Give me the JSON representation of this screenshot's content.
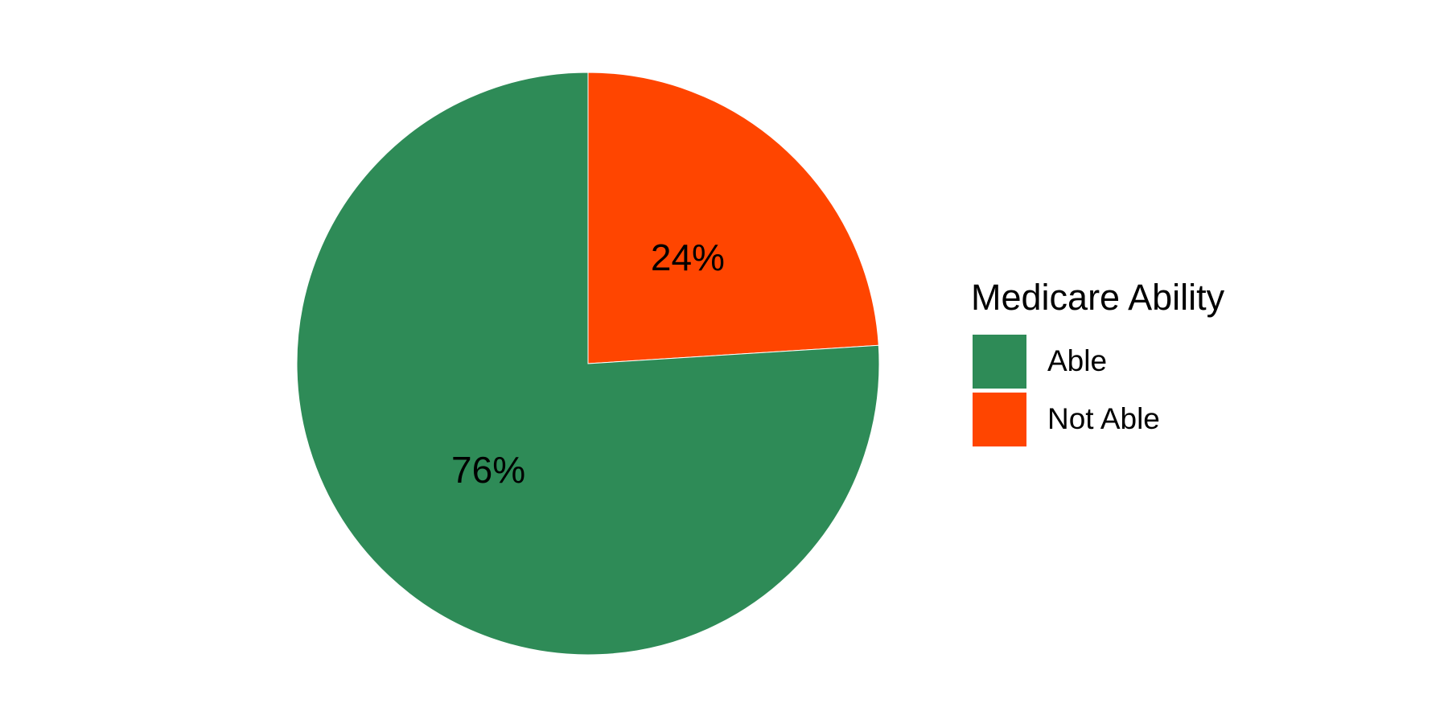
{
  "chart_data": {
    "type": "pie",
    "title": "",
    "legend": {
      "title": "Medicare Ability",
      "placement": "right"
    },
    "slices": [
      {
        "name": "Able",
        "value": 76,
        "label": "76%",
        "color": "#2E8B57"
      },
      {
        "name": "Not Able",
        "value": 24,
        "label": "24%",
        "color": "#FF4500"
      }
    ],
    "start": "12 o'clock",
    "direction": "clockwise, Not Able first"
  }
}
